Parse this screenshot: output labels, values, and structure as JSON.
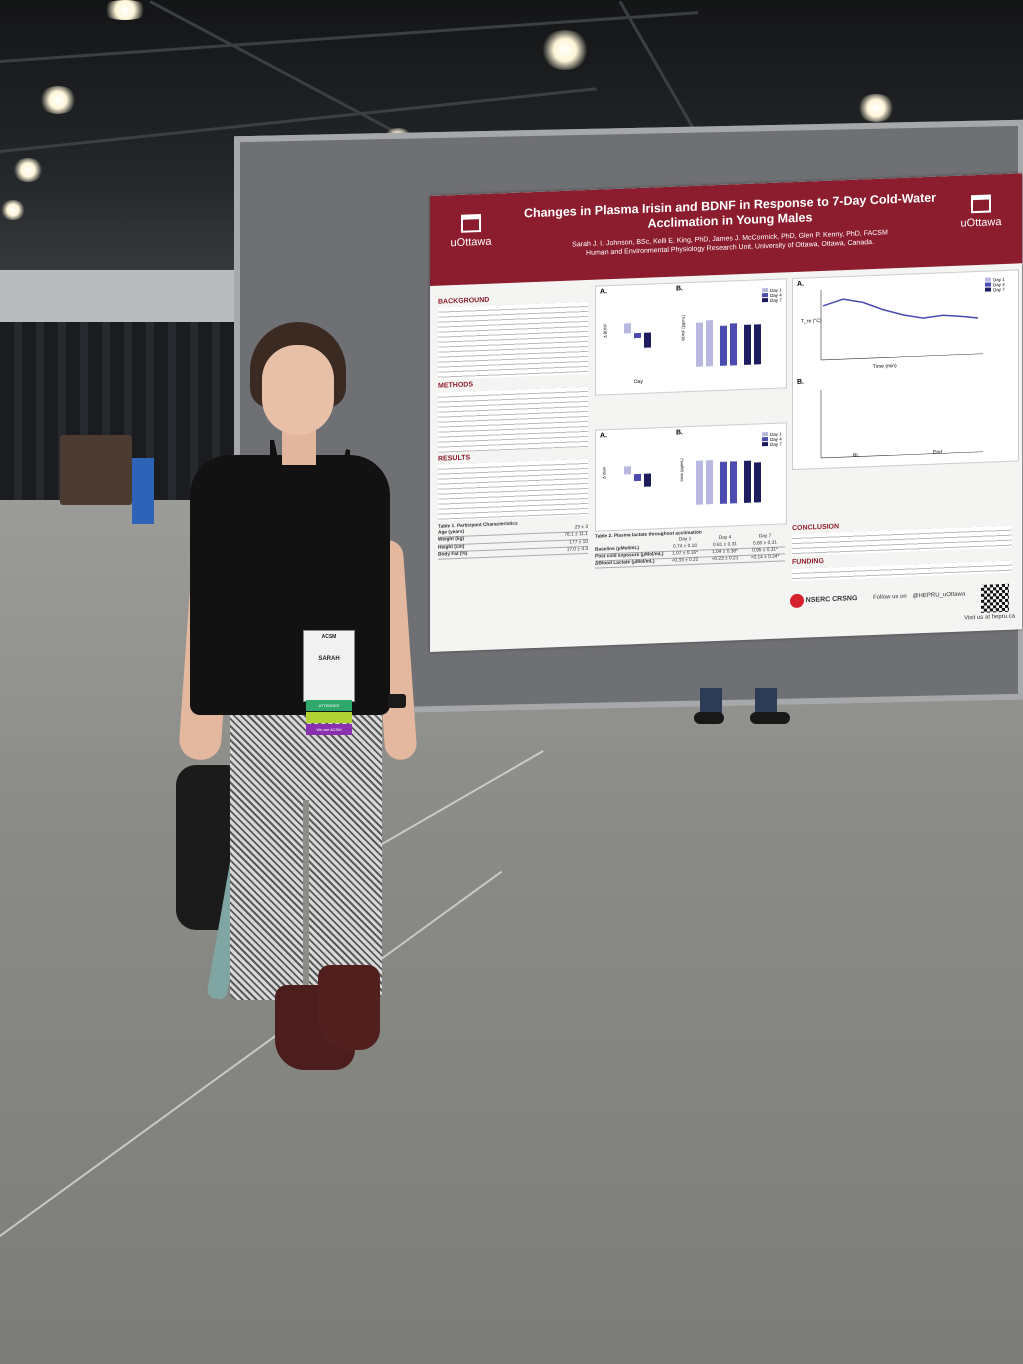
{
  "poster": {
    "title": "Changes in Plasma Irisin and BDNF in Response to 7-Day Cold-Water Acclimation in Young Males",
    "authors": "Sarah J. I. Johnson, BSc, Kelli E. King, PhD, James J. McCormick, PhD, Glen P. Kenny, PhD, FACSM",
    "affiliation": "Human and Environmental Physiology Research Unit, University of Ottawa, Ottawa, Canada.",
    "logo_left": "uOttawa",
    "logo_right": "uOttawa",
    "sections": {
      "background": "BACKGROUND",
      "methods": "METHODS",
      "results": "RESULTS",
      "conclusion": "CONCLUSION",
      "funding": "FUNDING"
    },
    "table1_title": "Table 1. Participant Characteristics",
    "table1_rows": [
      {
        "label": "Age (years)",
        "value": "23 ± 3"
      },
      {
        "label": "Weight (kg)",
        "value": "76.1 ± 11.1"
      },
      {
        "label": "Height (cm)",
        "value": "177 ± 10"
      },
      {
        "label": "Body Fat (%)",
        "value": "17.0 ± 4.3"
      }
    ],
    "table2_title": "Table 2. Plasma lactate throughout acclimation",
    "table2_cols": [
      "Day 1",
      "Day 4",
      "Day 7"
    ],
    "table2_rows": [
      {
        "label": "Baseline (μMol/mL)",
        "values": [
          "0.74 ± 0.18",
          "0.81 ± 0.31",
          "0.80 ± 0.31"
        ]
      },
      {
        "label": "Post cold exposure (μMol/mL)",
        "values": [
          "1.07 ± 0.16*",
          "1.04 ± 0.38*",
          "0.95 ± 0.31*"
        ]
      },
      {
        "label": "ΔBlood Lactate (μMol/mL)",
        "values": [
          "+0.33 ± 0.22",
          "+0.23 ± 0.21",
          "+0.14 ± 0.24*"
        ]
      }
    ],
    "legend_days": [
      "Day 1",
      "Day 4",
      "Day 7"
    ],
    "panel_labels": [
      "A.",
      "B.",
      "A.",
      "B.",
      "A.",
      "B."
    ],
    "axis_bdnf_delta": "Δ BDNF",
    "axis_bdnf": "BDNF (pg/mL)",
    "axis_irisin_delta": "Δ Irisin",
    "axis_irisin": "Irisin (pg/mL)",
    "axis_day": "Day",
    "axis_time": "Time (min)",
    "axis_tre": "T_re (°C)",
    "group_bl": "BL",
    "group_end": "End",
    "funders": "NSERC CRSNG",
    "follow": "Follow us on",
    "handle": "@HEPRU_uOttawa",
    "website": "Visit us at hepru.ca"
  },
  "badge": {
    "event": "ACSM",
    "name": "SARAH",
    "ribbon_top": "ATTENDEE",
    "ribbon_bottom": "We are ACSM"
  },
  "colors": {
    "poster_header": "#8c1d2e",
    "board": "#6f7073",
    "day1": "#b8b8e0",
    "day4": "#4b4bb0",
    "day7": "#1c1c5e"
  }
}
